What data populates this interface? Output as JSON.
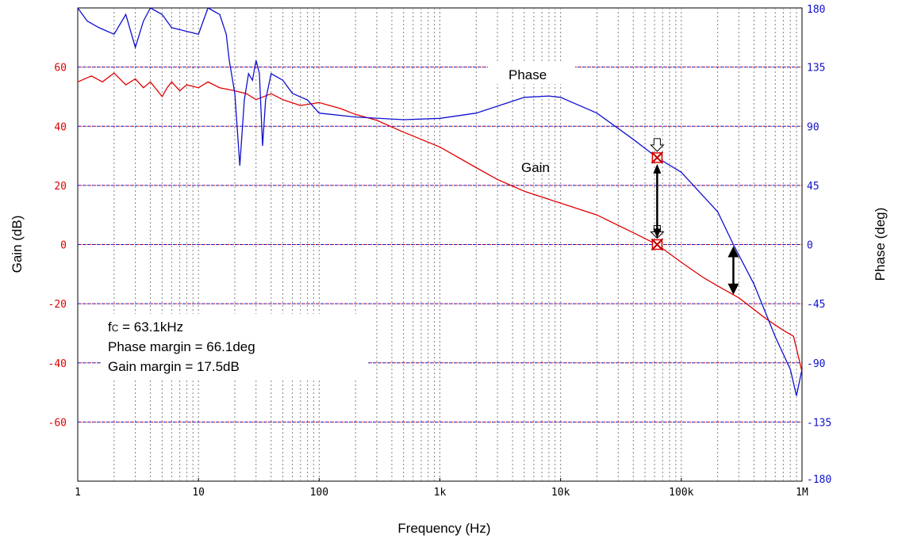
{
  "chart_data": {
    "type": "line",
    "xlabel": "Frequency (Hz)",
    "ylabel_left": "Gain (dB)",
    "ylabel_right": "Phase (deg)",
    "x_scale": "log",
    "xlim": [
      1,
      1000000
    ],
    "ylim_left": [
      -80,
      80
    ],
    "ylim_right": [
      -180,
      180
    ],
    "x_ticks": [
      {
        "value": 1,
        "label": "1"
      },
      {
        "value": 10,
        "label": "10"
      },
      {
        "value": 100,
        "label": "100"
      },
      {
        "value": 1000,
        "label": "1k"
      },
      {
        "value": 10000,
        "label": "10k"
      },
      {
        "value": 100000,
        "label": "100k"
      },
      {
        "value": 1000000,
        "label": "1M"
      }
    ],
    "y_left_ticks": [
      60,
      40,
      20,
      0,
      -20,
      -40,
      -60
    ],
    "y_right_ticks": [
      180,
      135,
      90,
      45,
      0,
      -45,
      -90,
      -135,
      -180
    ],
    "grid": true,
    "colors": {
      "gain": "#e00000",
      "phase": "#1010d0",
      "grid": "#808080"
    },
    "series": [
      {
        "name": "Gain",
        "axis": "left",
        "points": [
          [
            1,
            55
          ],
          [
            1.3,
            57
          ],
          [
            1.6,
            55
          ],
          [
            2,
            58
          ],
          [
            2.5,
            54
          ],
          [
            3,
            56
          ],
          [
            3.5,
            53
          ],
          [
            4,
            55
          ],
          [
            5,
            50
          ],
          [
            5.5,
            53
          ],
          [
            6,
            55
          ],
          [
            7,
            52
          ],
          [
            8,
            54
          ],
          [
            10,
            53
          ],
          [
            12,
            55
          ],
          [
            15,
            53
          ],
          [
            20,
            52
          ],
          [
            25,
            51
          ],
          [
            30,
            49
          ],
          [
            40,
            51
          ],
          [
            50,
            49
          ],
          [
            70,
            47
          ],
          [
            100,
            48
          ],
          [
            150,
            46
          ],
          [
            200,
            44
          ],
          [
            300,
            42
          ],
          [
            500,
            38
          ],
          [
            1000,
            33
          ],
          [
            2000,
            26
          ],
          [
            3000,
            22
          ],
          [
            5000,
            18
          ],
          [
            10000,
            14
          ],
          [
            20000,
            10
          ],
          [
            40000,
            4
          ],
          [
            63100,
            0
          ],
          [
            100000,
            -6
          ],
          [
            150000,
            -11
          ],
          [
            200000,
            -14
          ],
          [
            300000,
            -18
          ],
          [
            500000,
            -25
          ],
          [
            700000,
            -29
          ],
          [
            850000,
            -31
          ],
          [
            1000000,
            -43
          ]
        ]
      },
      {
        "name": "Phase",
        "axis": "right",
        "points": [
          [
            1,
            180
          ],
          [
            1.2,
            170
          ],
          [
            1.5,
            165
          ],
          [
            2,
            160
          ],
          [
            2.5,
            175
          ],
          [
            3,
            150
          ],
          [
            3.5,
            170
          ],
          [
            4,
            180
          ],
          [
            5,
            175
          ],
          [
            6,
            165
          ],
          [
            10,
            160
          ],
          [
            12,
            180
          ],
          [
            15,
            175
          ],
          [
            17,
            160
          ],
          [
            18,
            140
          ],
          [
            20,
            115
          ],
          [
            22,
            60
          ],
          [
            24,
            110
          ],
          [
            26,
            130
          ],
          [
            28,
            125
          ],
          [
            30,
            140
          ],
          [
            32,
            130
          ],
          [
            34,
            75
          ],
          [
            36,
            110
          ],
          [
            40,
            130
          ],
          [
            50,
            125
          ],
          [
            60,
            115
          ],
          [
            80,
            110
          ],
          [
            100,
            100
          ],
          [
            200,
            97
          ],
          [
            500,
            95
          ],
          [
            1000,
            96
          ],
          [
            2000,
            100
          ],
          [
            5000,
            112
          ],
          [
            8000,
            113
          ],
          [
            10000,
            112
          ],
          [
            20000,
            100
          ],
          [
            40000,
            80
          ],
          [
            63100,
            66.1
          ],
          [
            100000,
            55
          ],
          [
            200000,
            25
          ],
          [
            270000,
            0
          ],
          [
            400000,
            -30
          ],
          [
            600000,
            -70
          ],
          [
            800000,
            -95
          ],
          [
            900000,
            -115
          ],
          [
            1000000,
            -95
          ]
        ]
      }
    ],
    "annotations": {
      "phase_label": "Phase",
      "gain_label": "Gain",
      "fc_prefix": "f",
      "fc_subscript": "C",
      "fc_value": " = 63.1kHz",
      "phase_margin": "Phase margin = 66.1deg",
      "gain_margin": "Gain margin = 17.5dB"
    },
    "markers": {
      "crossover_frequency_hz": 63100,
      "phase_crossover_frequency_hz": 270000,
      "phase_margin_deg": 66.1,
      "gain_margin_db": 17.5
    }
  }
}
